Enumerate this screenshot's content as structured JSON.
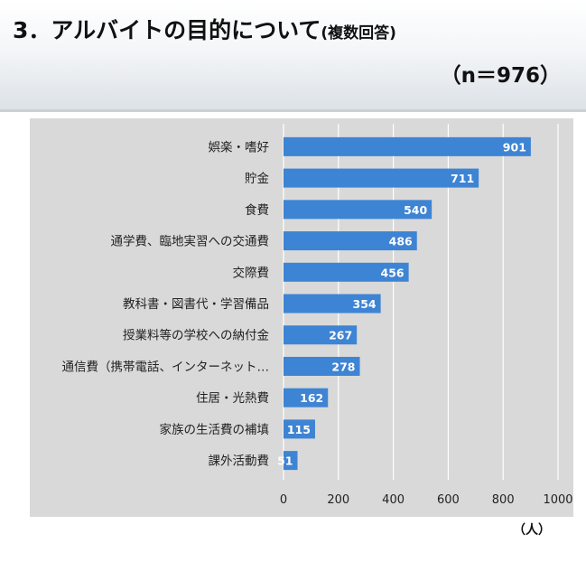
{
  "header": {
    "title": "3．アルバイトの目的について",
    "title_note": "(複数回答)",
    "sample_size": "（n＝976）"
  },
  "colors": {
    "bar": "#3e84d4",
    "plot_background": "#d9d9d9",
    "gridline": "#ffffff",
    "value_label": "#ffffff",
    "text": "#222222"
  },
  "chart_data": {
    "type": "bar",
    "orientation": "horizontal",
    "categories": [
      "娯楽・嗜好",
      "貯金",
      "食費",
      "通学費、臨地実習への交通費",
      "交際費",
      "教科書・図書代・学習備品",
      "授業料等の学校への納付金",
      "通信費（携帯電話、インターネット…",
      "住居・光熱費",
      "家族の生活費の補填",
      "課外活動費"
    ],
    "values": [
      901,
      711,
      540,
      486,
      456,
      354,
      267,
      278,
      162,
      115,
      51
    ],
    "xlim": [
      0,
      1000
    ],
    "xticks": [
      0,
      200,
      400,
      600,
      800,
      1000
    ],
    "xlabel": "（人）",
    "ylabel": "",
    "data_labels": true,
    "grid": "vertical"
  }
}
